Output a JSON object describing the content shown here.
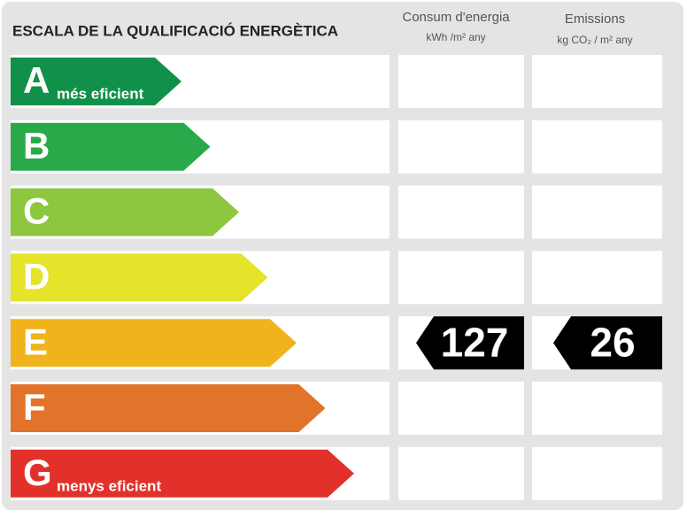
{
  "header": {
    "title": "ESCALA DE LA QUALIFICACIÓ ENERGÈTICA",
    "consumption": {
      "label": "Consum d'energia",
      "unit": "kWh /m² any"
    },
    "emissions": {
      "label": "Emissions",
      "unit": "kg CO₂ / m² any"
    }
  },
  "classes": [
    {
      "letter": "A",
      "note": "més eficient",
      "color": "#11904a"
    },
    {
      "letter": "B",
      "letter_only": true,
      "color": "#2aa94a"
    },
    {
      "letter": "C",
      "color": "#8dc63f"
    },
    {
      "letter": "D",
      "color": "#e5e32a"
    },
    {
      "letter": "E",
      "color": "#f1b31c"
    },
    {
      "letter": "F",
      "color": "#e1742a"
    },
    {
      "letter": "G",
      "note": "menys eficient",
      "color": "#e2312b"
    }
  ],
  "rating": {
    "class": "E",
    "consumption": 127,
    "emissions": 26
  }
}
